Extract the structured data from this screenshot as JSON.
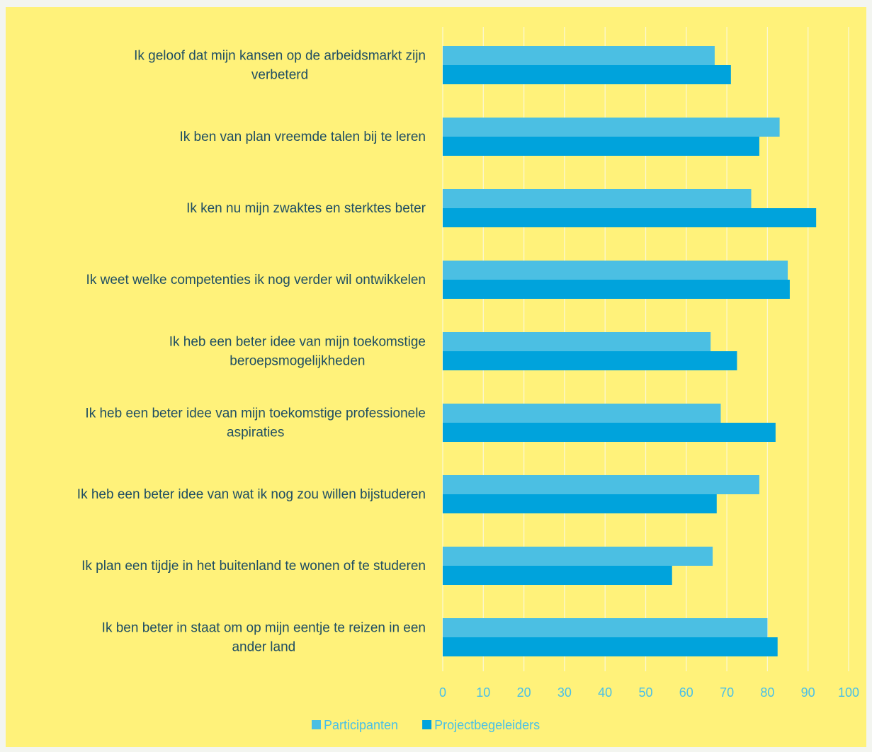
{
  "chart_data": {
    "type": "bar",
    "orientation": "horizontal",
    "categories": [
      "Ik geloof dat mijn kansen op de arbeidsmarkt zijn verbeterd",
      "Ik ben van plan vreemde talen bij te leren",
      "Ik ken nu mijn zwaktes en sterktes beter",
      "Ik weet welke competenties ik nog verder wil ontwikkelen",
      "Ik heb een beter idee van mijn toekomstige beroepsmogelijkheden",
      "Ik heb een beter idee van mijn toekomstige professionele aspiraties",
      "Ik heb een beter idee van wat ik nog zou willen bijstuderen",
      "Ik plan een tijdje in het buitenland te wonen of te studeren",
      "Ik ben beter in staat om op mijn eentje te reizen in een ander land"
    ],
    "category_lines": [
      [
        "Ik geloof dat mijn kansen op de arbeidsmarkt zijn",
        "verbeterd"
      ],
      [
        "Ik ben van plan vreemde talen bij te leren"
      ],
      [
        "Ik ken nu mijn zwaktes en sterktes beter"
      ],
      [
        "Ik weet welke competenties ik nog verder wil ontwikkelen"
      ],
      [
        "Ik heb een beter idee van mijn toekomstige",
        "beroepsmogelijkheden"
      ],
      [
        "Ik heb een beter idee van mijn toekomstige professionele",
        "aspiraties"
      ],
      [
        "Ik heb een beter idee van wat ik nog zou willen bijstuderen"
      ],
      [
        "Ik plan een tijdje in het buitenland te wonen of te studeren"
      ],
      [
        "Ik ben beter in staat om op mijn eentje te reizen in een",
        "ander land"
      ]
    ],
    "series": [
      {
        "name": "Participanten",
        "color": "#4bbfe3",
        "values": [
          67,
          83,
          76,
          85,
          66,
          68.5,
          78,
          66.5,
          80
        ]
      },
      {
        "name": "Projectbegeleiders",
        "color": "#00a3dc",
        "values": [
          71,
          78,
          92,
          85.5,
          72.5,
          82,
          67.5,
          56.5,
          82.5
        ]
      }
    ],
    "xlim": [
      0,
      100
    ],
    "xticks": [
      0,
      10,
      20,
      30,
      40,
      50,
      60,
      70,
      80,
      90,
      100
    ],
    "grid": true,
    "legend_position": "bottom",
    "background": "#fff27a",
    "label_color": "#1f4e63",
    "tick_color": "#49c0e8"
  }
}
